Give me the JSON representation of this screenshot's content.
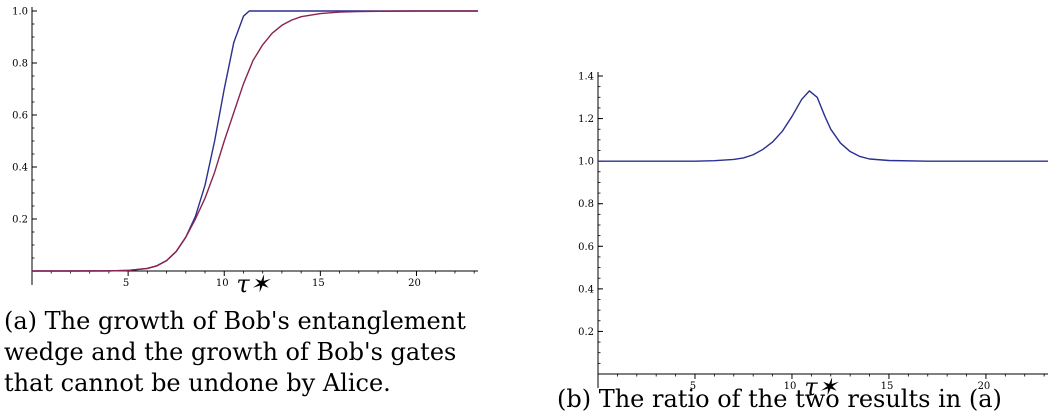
{
  "captions": {
    "a": "(a) The growth of Bob's entanglement wedge and the growth of Bob's gates that cannot be undone by Alice.",
    "b": "(b) The ratio of the two results in (a)"
  },
  "colors": {
    "blue_curve": "#2b2f8f",
    "red_curve": "#8b2350",
    "axis": "#000000"
  },
  "chart_data": [
    {
      "type": "line",
      "title": "",
      "xlabel": "τ✶",
      "ylabel": "",
      "xlim": [
        0,
        23.2
      ],
      "ylim": [
        0,
        1.0
      ],
      "xticks": [
        5,
        10,
        15,
        20
      ],
      "xtick_labels": [
        "5",
        "10",
        "15",
        "20"
      ],
      "yticks": [
        0.2,
        0.4,
        0.6,
        0.8,
        1.0
      ],
      "ytick_labels": [
        "0.2",
        "0.4",
        "0.6",
        "0.8",
        "1.0"
      ],
      "grid": false,
      "series": [
        {
          "color": "#2b2f8f",
          "x": [
            0,
            2,
            4,
            5,
            6,
            6.5,
            7,
            7.5,
            8,
            8.5,
            9,
            9.5,
            10,
            10.5,
            11,
            11.3,
            11.5,
            12,
            14,
            17,
            20,
            23.2
          ],
          "y": [
            0,
            0,
            0.0005,
            0.002,
            0.01,
            0.02,
            0.04,
            0.075,
            0.13,
            0.21,
            0.33,
            0.5,
            0.7,
            0.88,
            0.98,
            1.0,
            1.0,
            1.0,
            1.0,
            1.0,
            1.0,
            1.0
          ]
        },
        {
          "color": "#8b2350",
          "x": [
            0,
            2,
            4,
            5,
            6,
            6.5,
            7,
            7.5,
            8,
            8.5,
            9,
            9.5,
            10,
            10.5,
            11,
            11.5,
            12,
            12.5,
            13,
            13.5,
            14,
            15,
            16,
            17,
            18,
            20,
            23.2
          ],
          "y": [
            0,
            0,
            0.0005,
            0.002,
            0.01,
            0.02,
            0.04,
            0.075,
            0.13,
            0.2,
            0.28,
            0.38,
            0.5,
            0.61,
            0.72,
            0.81,
            0.87,
            0.915,
            0.945,
            0.965,
            0.978,
            0.99,
            0.996,
            0.998,
            0.999,
            1.0,
            1.0
          ]
        }
      ]
    },
    {
      "type": "line",
      "title": "",
      "xlabel": "τ✶",
      "ylabel": "",
      "xlim": [
        0,
        23.2
      ],
      "ylim": [
        0,
        1.4
      ],
      "xticks": [
        5,
        10,
        15,
        20
      ],
      "xtick_labels": [
        "5",
        "10",
        "15",
        "20"
      ],
      "yticks": [
        0.2,
        0.4,
        0.6,
        0.8,
        1.0,
        1.2,
        1.4
      ],
      "ytick_labels": [
        "0.2",
        "0.4",
        "0.6",
        "0.8",
        "1.0",
        "1.2",
        "1.4"
      ],
      "grid": false,
      "series": [
        {
          "color": "#2b2f8f",
          "x": [
            0,
            5,
            6,
            7,
            7.5,
            8,
            8.5,
            9,
            9.5,
            10,
            10.5,
            10.9,
            11.3,
            11.7,
            12,
            12.5,
            13,
            13.5,
            14,
            15,
            17,
            20,
            23.2
          ],
          "y": [
            1.0,
            1.0,
            1.002,
            1.008,
            1.015,
            1.03,
            1.055,
            1.09,
            1.14,
            1.21,
            1.29,
            1.33,
            1.3,
            1.21,
            1.15,
            1.085,
            1.045,
            1.022,
            1.01,
            1.003,
            1.0,
            1.0,
            1.0
          ]
        }
      ]
    }
  ]
}
